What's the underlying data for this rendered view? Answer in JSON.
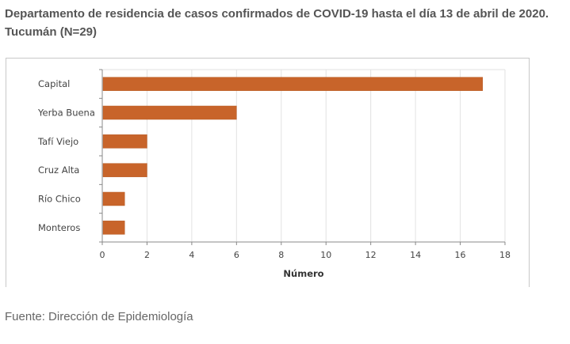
{
  "title": "Departamento de residencia de casos confirmados de COVID-19 hasta el día 13 de abril de 2020. Tucumán (N=29)",
  "source": "Fuente: Dirección de Epidemiología",
  "chart_data": {
    "type": "bar",
    "orientation": "horizontal",
    "categories": [
      "Capital",
      "Yerba Buena",
      "Tafí Viejo",
      "Cruz Alta",
      "Río Chico",
      "Monteros"
    ],
    "values": [
      17,
      6,
      2,
      2,
      1,
      1
    ],
    "xlabel": "Número",
    "ylabel": "",
    "xlim": [
      0,
      18
    ],
    "xticks": [
      0,
      2,
      4,
      6,
      8,
      10,
      12,
      14,
      16,
      18
    ],
    "grid": "vertical",
    "legend": "none",
    "bar_color": "#C8642A"
  }
}
